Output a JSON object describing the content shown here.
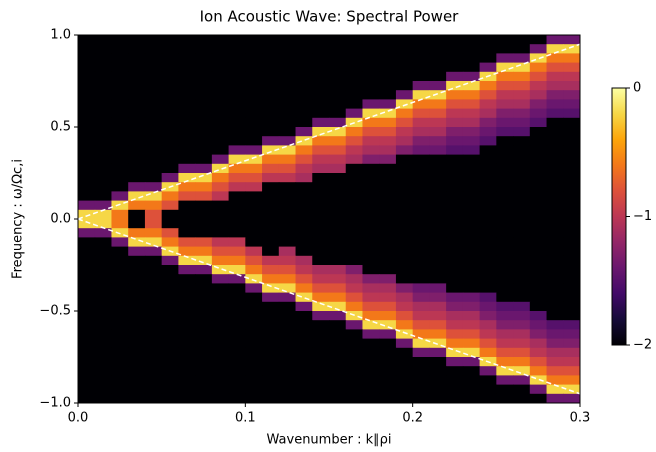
{
  "chart_data": {
    "type": "heatmap",
    "title": "Ion Acoustic Wave: Spectral Power",
    "xlabel": "Wavenumber : k∥ρi",
    "ylabel": "Frequency : ω/Ωc,i",
    "xlim": [
      0,
      0.3
    ],
    "ylim": [
      -1,
      1
    ],
    "xticks": [
      {
        "value": 0,
        "label": "0.0"
      },
      0.1,
      0.2,
      0.3
    ],
    "yticks": [
      {
        "value": -1,
        "label": "−1.0"
      },
      {
        "value": -0.5,
        "label": "−0.5"
      },
      {
        "value": 0,
        "label": "0.0"
      },
      0.5,
      {
        "value": 1,
        "label": "1.0"
      }
    ],
    "colormap": "inferno",
    "zlim": [
      -2,
      0
    ],
    "zticks": [
      {
        "value": -2,
        "label": "−2"
      },
      {
        "value": -1,
        "label": "−1"
      },
      0
    ],
    "z": [
      [
        -2,
        -2,
        -2,
        -2,
        -2,
        -2,
        -2,
        -2,
        -2,
        -2,
        -2,
        -2,
        -2,
        -2,
        -2,
        -2,
        -2,
        -2,
        -2,
        -2,
        -2,
        -2,
        -2,
        -2,
        -2,
        -2,
        -2,
        -2,
        -1.4,
        -1.4
      ],
      [
        -2,
        -2,
        -2,
        -2,
        -2,
        -2,
        -2,
        -2,
        -2,
        -2,
        -2,
        -2,
        -2,
        -2,
        -2,
        -2,
        -2,
        -2,
        -2,
        -2,
        -2,
        -2,
        -2,
        -2,
        -2,
        -2,
        -2,
        -1.4,
        -0.2,
        -0.2
      ],
      [
        -2,
        -2,
        -2,
        -2,
        -2,
        -2,
        -2,
        -2,
        -2,
        -2,
        -2,
        -2,
        -2,
        -2,
        -2,
        -2,
        -2,
        -2,
        -2,
        -2,
        -2,
        -2,
        -2,
        -2,
        -2,
        -1.4,
        -1.4,
        -0.2,
        -0.6,
        -0.6
      ],
      [
        -2,
        -2,
        -2,
        -2,
        -2,
        -2,
        -2,
        -2,
        -2,
        -2,
        -2,
        -2,
        -2,
        -2,
        -2,
        -2,
        -2,
        -2,
        -2,
        -2,
        -2,
        -2,
        -2,
        -2,
        -1.4,
        -0.2,
        -0.2,
        -0.6,
        -0.8,
        -0.8
      ],
      [
        -2,
        -2,
        -2,
        -2,
        -2,
        -2,
        -2,
        -2,
        -2,
        -2,
        -2,
        -2,
        -2,
        -2,
        -2,
        -2,
        -2,
        -2,
        -2,
        -2,
        -2,
        -2,
        -1.4,
        -1.4,
        -0.2,
        -0.6,
        -0.6,
        -0.8,
        -1.0,
        -1.0
      ],
      [
        -2,
        -2,
        -2,
        -2,
        -2,
        -2,
        -2,
        -2,
        -2,
        -2,
        -2,
        -2,
        -2,
        -2,
        -2,
        -2,
        -2,
        -2,
        -2,
        -2,
        -1.4,
        -1.4,
        -0.2,
        -0.2,
        -0.6,
        -0.8,
        -0.8,
        -1.0,
        -1.1,
        -1.1
      ],
      [
        -2,
        -2,
        -2,
        -2,
        -2,
        -2,
        -2,
        -2,
        -2,
        -2,
        -2,
        -2,
        -2,
        -2,
        -2,
        -2,
        -2,
        -2,
        -2,
        -1.4,
        -0.2,
        -0.2,
        -0.6,
        -0.6,
        -0.8,
        -1.0,
        -1.0,
        -1.1,
        -1.3,
        -1.3
      ],
      [
        -2,
        -2,
        -2,
        -2,
        -2,
        -2,
        -2,
        -2,
        -2,
        -2,
        -2,
        -2,
        -2,
        -2,
        -2,
        -2,
        -2,
        -1.4,
        -1.4,
        -0.2,
        -0.6,
        -0.6,
        -0.8,
        -0.8,
        -1.0,
        -1.1,
        -1.1,
        -1.3,
        -1.4,
        -1.4
      ],
      [
        -2,
        -2,
        -2,
        -2,
        -2,
        -2,
        -2,
        -2,
        -2,
        -2,
        -2,
        -2,
        -2,
        -2,
        -2,
        -2,
        -1.4,
        -0.2,
        -0.2,
        -0.6,
        -0.8,
        -0.8,
        -1.0,
        -1.0,
        -1.1,
        -1.3,
        -1.3,
        -1.4,
        -1.5,
        -1.5
      ],
      [
        -2,
        -2,
        -2,
        -2,
        -2,
        -2,
        -2,
        -2,
        -2,
        -2,
        -2,
        -2,
        -2,
        -2,
        -1.4,
        -1.4,
        -0.2,
        -0.6,
        -0.6,
        -0.8,
        -1.0,
        -1.0,
        -1.1,
        -1.1,
        -1.3,
        -1.4,
        -1.4,
        -1.5,
        -2,
        -2
      ],
      [
        -2,
        -2,
        -2,
        -2,
        -2,
        -2,
        -2,
        -2,
        -2,
        -2,
        -2,
        -2,
        -2,
        -1.4,
        -0.2,
        -0.2,
        -0.6,
        -0.8,
        -0.8,
        -1.0,
        -1.1,
        -1.1,
        -1.3,
        -1.3,
        -1.4,
        -1.5,
        -1.5,
        -2,
        -2,
        -2
      ],
      [
        -2,
        -2,
        -2,
        -2,
        -2,
        -2,
        -2,
        -2,
        -2,
        -2,
        -2,
        -1.4,
        -1.4,
        -0.2,
        -0.6,
        -0.6,
        -0.8,
        -1.0,
        -1.0,
        -1.1,
        -1.3,
        -1.3,
        -1.4,
        -1.4,
        -1.5,
        -2,
        -2,
        -2,
        -2,
        -2
      ],
      [
        -2,
        -2,
        -2,
        -2,
        -2,
        -2,
        -2,
        -2,
        -2,
        -1.4,
        -1.4,
        -0.2,
        -0.2,
        -0.6,
        -0.8,
        -0.8,
        -1.0,
        -1.1,
        -1.1,
        -1.3,
        -1.4,
        -1.4,
        -1.5,
        -1.5,
        -2,
        -2,
        -2,
        -2,
        -2,
        -2
      ],
      [
        -2,
        -2,
        -2,
        -2,
        -2,
        -2,
        -2,
        -2,
        -1.4,
        -0.2,
        -0.2,
        -0.6,
        -0.6,
        -0.8,
        -1.0,
        -1.0,
        -1.1,
        -1.3,
        -1.3,
        -2,
        -2,
        -2,
        -2,
        -2,
        -2,
        -2,
        -2,
        -2,
        -2,
        -2
      ],
      [
        -2,
        -2,
        -2,
        -2,
        -2,
        -2,
        -1.4,
        -1.4,
        -0.2,
        -0.6,
        -0.6,
        -0.8,
        -0.8,
        -1.0,
        -1.1,
        -1.1,
        -2,
        -2,
        -2,
        -2,
        -2,
        -2,
        -2,
        -2,
        -2,
        -2,
        -2,
        -2,
        -2,
        -2
      ],
      [
        -2,
        -2,
        -2,
        -2,
        -2,
        -1.4,
        -0.2,
        -0.2,
        -0.6,
        -0.8,
        -0.8,
        -1.0,
        -1.0,
        -1.1,
        -2,
        -2,
        -2,
        -2,
        -2,
        -2,
        -2,
        -2,
        -2,
        -2,
        -2,
        -2,
        -2,
        -2,
        -2,
        -2
      ],
      [
        -2,
        -2,
        -2,
        -1.4,
        -1.4,
        -0.2,
        -0.6,
        -0.6,
        -0.8,
        -1.0,
        -1.0,
        -2,
        -2,
        -2,
        -2,
        -2,
        -2,
        -2,
        -2,
        -2,
        -2,
        -2,
        -2,
        -2,
        -2,
        -2,
        -2,
        -2,
        -2,
        -2
      ],
      [
        -2,
        -2,
        -1.4,
        -0.2,
        -0.2,
        -0.6,
        -0.8,
        -0.8,
        -1.0,
        -2,
        -2,
        -2,
        -2,
        -2,
        -2,
        -2,
        -2,
        -2,
        -2,
        -2,
        -2,
        -2,
        -2,
        -2,
        -2,
        -2,
        -2,
        -2,
        -2,
        -2
      ],
      [
        -1.4,
        -1.4,
        -0.2,
        -0.6,
        -0.6,
        -0.8,
        -2,
        -2,
        -2,
        -2,
        -2,
        -2,
        -2,
        -2,
        -2,
        -2,
        -2,
        -2,
        -2,
        -2,
        -2,
        -2,
        -2,
        -2,
        -2,
        -2,
        -2,
        -2,
        -2,
        -2
      ],
      [
        -0.2,
        -0.2,
        -0.6,
        -2,
        -0.8,
        -2,
        -2,
        -2,
        -2,
        -2,
        -2,
        -2,
        -2,
        -2,
        -2,
        -2,
        -2,
        -2,
        -2,
        -2,
        -2,
        -2,
        -2,
        -2,
        -2,
        -2,
        -2,
        -2,
        -2,
        -2
      ],
      [
        -0.2,
        -0.2,
        -0.6,
        -2,
        -0.8,
        -2,
        -2,
        -2,
        -2,
        -2,
        -2,
        -2,
        -2,
        -2,
        -2,
        -2,
        -2,
        -2,
        -2,
        -2,
        -2,
        -2,
        -2,
        -2,
        -2,
        -2,
        -2,
        -2,
        -2,
        -2
      ],
      [
        -1.4,
        -1.4,
        -0.2,
        -0.6,
        -0.6,
        -0.8,
        -2,
        -2,
        -2,
        -2,
        -2,
        -2,
        -2,
        -2,
        -2,
        -2,
        -2,
        -2,
        -2,
        -2,
        -2,
        -2,
        -2,
        -2,
        -2,
        -2,
        -2,
        -2,
        -2,
        -2
      ],
      [
        -2,
        -2,
        -1.4,
        -0.2,
        -0.2,
        -0.6,
        -0.8,
        -0.8,
        -1.0,
        -1.0,
        -2,
        -2,
        -2,
        -2,
        -2,
        -2,
        -2,
        -2,
        -2,
        -2,
        -2,
        -2,
        -2,
        -2,
        -2,
        -2,
        -2,
        -2,
        -2,
        -2
      ],
      [
        -2,
        -2,
        -2,
        -1.4,
        -1.4,
        -0.2,
        -0.6,
        -0.6,
        -0.8,
        -0.8,
        -1.0,
        -2,
        -1.1,
        -2,
        -2,
        -2,
        -2,
        -2,
        -2,
        -2,
        -2,
        -2,
        -2,
        -2,
        -2,
        -2,
        -2,
        -2,
        -2,
        -2
      ],
      [
        -2,
        -2,
        -2,
        -2,
        -2,
        -1.4,
        -0.2,
        -0.2,
        -0.6,
        -0.6,
        -0.8,
        -1.0,
        -1.0,
        -1.1,
        -2,
        -2,
        -2,
        -2,
        -2,
        -2,
        -2,
        -2,
        -2,
        -2,
        -2,
        -2,
        -2,
        -2,
        -2,
        -2
      ],
      [
        -2,
        -2,
        -2,
        -2,
        -2,
        -2,
        -1.4,
        -1.4,
        -0.2,
        -0.2,
        -0.6,
        -0.8,
        -0.8,
        -1.0,
        -1.1,
        -1.1,
        -1.3,
        -2,
        -2,
        -2,
        -2,
        -2,
        -2,
        -2,
        -2,
        -2,
        -2,
        -2,
        -2,
        -2
      ],
      [
        -2,
        -2,
        -2,
        -2,
        -2,
        -2,
        -2,
        -2,
        -1.4,
        -1.4,
        -0.2,
        -0.6,
        -0.6,
        -0.8,
        -1.0,
        -1.0,
        -1.1,
        -1.3,
        -1.3,
        -2,
        -2,
        -2,
        -2,
        -2,
        -2,
        -2,
        -2,
        -2,
        -2,
        -2
      ],
      [
        -2,
        -2,
        -2,
        -2,
        -2,
        -2,
        -2,
        -2,
        -2,
        -2,
        -1.4,
        -0.2,
        -0.2,
        -0.6,
        -0.8,
        -0.8,
        -1.0,
        -1.1,
        -1.1,
        -1.3,
        -1.4,
        -1.4,
        -2,
        -2,
        -2,
        -2,
        -2,
        -2,
        -2,
        -2
      ],
      [
        -2,
        -2,
        -2,
        -2,
        -2,
        -2,
        -2,
        -2,
        -2,
        -2,
        -2,
        -1.4,
        -1.4,
        -0.2,
        -0.6,
        -0.6,
        -0.8,
        -1.0,
        -1.0,
        -1.1,
        -1.3,
        -1.3,
        -1.4,
        -1.4,
        -1.5,
        -2,
        -2,
        -2,
        -2,
        -2
      ],
      [
        -2,
        -2,
        -2,
        -2,
        -2,
        -2,
        -2,
        -2,
        -2,
        -2,
        -2,
        -2,
        -2,
        -1.4,
        -0.2,
        -0.2,
        -0.6,
        -0.8,
        -0.8,
        -1.0,
        -1.1,
        -1.1,
        -1.3,
        -1.3,
        -1.4,
        -1.5,
        -1.5,
        -2,
        -2,
        -2
      ],
      [
        -2,
        -2,
        -2,
        -2,
        -2,
        -2,
        -2,
        -2,
        -2,
        -2,
        -2,
        -2,
        -2,
        -2,
        -1.4,
        -1.4,
        -0.2,
        -0.6,
        -0.6,
        -0.8,
        -1.0,
        -1.0,
        -1.1,
        -1.1,
        -1.3,
        -1.4,
        -1.4,
        -1.5,
        -2,
        -2
      ],
      [
        -2,
        -2,
        -2,
        -2,
        -2,
        -2,
        -2,
        -2,
        -2,
        -2,
        -2,
        -2,
        -2,
        -2,
        -2,
        -2,
        -1.4,
        -0.2,
        -0.2,
        -0.6,
        -0.8,
        -0.8,
        -1.0,
        -1.0,
        -1.1,
        -1.3,
        -1.3,
        -1.4,
        -1.5,
        -1.5
      ],
      [
        -2,
        -2,
        -2,
        -2,
        -2,
        -2,
        -2,
        -2,
        -2,
        -2,
        -2,
        -2,
        -2,
        -2,
        -2,
        -2,
        -2,
        -1.4,
        -1.4,
        -0.2,
        -0.6,
        -0.6,
        -0.8,
        -0.8,
        -1.0,
        -1.1,
        -1.1,
        -1.3,
        -1.4,
        -1.4
      ],
      [
        -2,
        -2,
        -2,
        -2,
        -2,
        -2,
        -2,
        -2,
        -2,
        -2,
        -2,
        -2,
        -2,
        -2,
        -2,
        -2,
        -2,
        -2,
        -2,
        -1.4,
        -0.2,
        -0.2,
        -0.6,
        -0.6,
        -0.8,
        -1.0,
        -1.0,
        -1.1,
        -1.3,
        -1.3
      ],
      [
        -2,
        -2,
        -2,
        -2,
        -2,
        -2,
        -2,
        -2,
        -2,
        -2,
        -2,
        -2,
        -2,
        -2,
        -2,
        -2,
        -2,
        -2,
        -2,
        -2,
        -1.4,
        -1.4,
        -0.2,
        -0.2,
        -0.6,
        -0.8,
        -0.8,
        -1.0,
        -1.1,
        -1.1
      ],
      [
        -2,
        -2,
        -2,
        -2,
        -2,
        -2,
        -2,
        -2,
        -2,
        -2,
        -2,
        -2,
        -2,
        -2,
        -2,
        -2,
        -2,
        -2,
        -2,
        -2,
        -2,
        -2,
        -1.4,
        -1.4,
        -0.2,
        -0.6,
        -0.6,
        -0.8,
        -1.0,
        -1.0
      ],
      [
        -2,
        -2,
        -2,
        -2,
        -2,
        -2,
        -2,
        -2,
        -2,
        -2,
        -2,
        -2,
        -2,
        -2,
        -2,
        -2,
        -2,
        -2,
        -2,
        -2,
        -2,
        -2,
        -2,
        -2,
        -1.4,
        -0.2,
        -0.2,
        -0.6,
        -0.8,
        -0.8
      ],
      [
        -2,
        -2,
        -2,
        -2,
        -2,
        -2,
        -2,
        -2,
        -2,
        -2,
        -2,
        -2,
        -2,
        -2,
        -2,
        -2,
        -2,
        -2,
        -2,
        -2,
        -2,
        -2,
        -2,
        -2,
        -2,
        -1.4,
        -1.4,
        -0.2,
        -0.6,
        -0.6
      ],
      [
        -2,
        -2,
        -2,
        -2,
        -2,
        -2,
        -2,
        -2,
        -2,
        -2,
        -2,
        -2,
        -2,
        -2,
        -2,
        -2,
        -2,
        -2,
        -2,
        -2,
        -2,
        -2,
        -2,
        -2,
        -2,
        -2,
        -2,
        -1.4,
        -0.2,
        -0.2
      ],
      [
        -2,
        -2,
        -2,
        -2,
        -2,
        -2,
        -2,
        -2,
        -2,
        -2,
        -2,
        -2,
        -2,
        -2,
        -2,
        -2,
        -2,
        -2,
        -2,
        -2,
        -2,
        -2,
        -2,
        -2,
        -2,
        -2,
        -2,
        -2,
        -1.4,
        -1.4
      ]
    ],
    "lines": [
      {
        "x": [
          0,
          0.3
        ],
        "y": [
          0,
          0.95
        ],
        "color": "#ffffff",
        "dashed": true
      },
      {
        "x": [
          0,
          0.3
        ],
        "y": [
          0,
          -0.95
        ],
        "color": "#ffffff",
        "dashed": true
      }
    ]
  }
}
